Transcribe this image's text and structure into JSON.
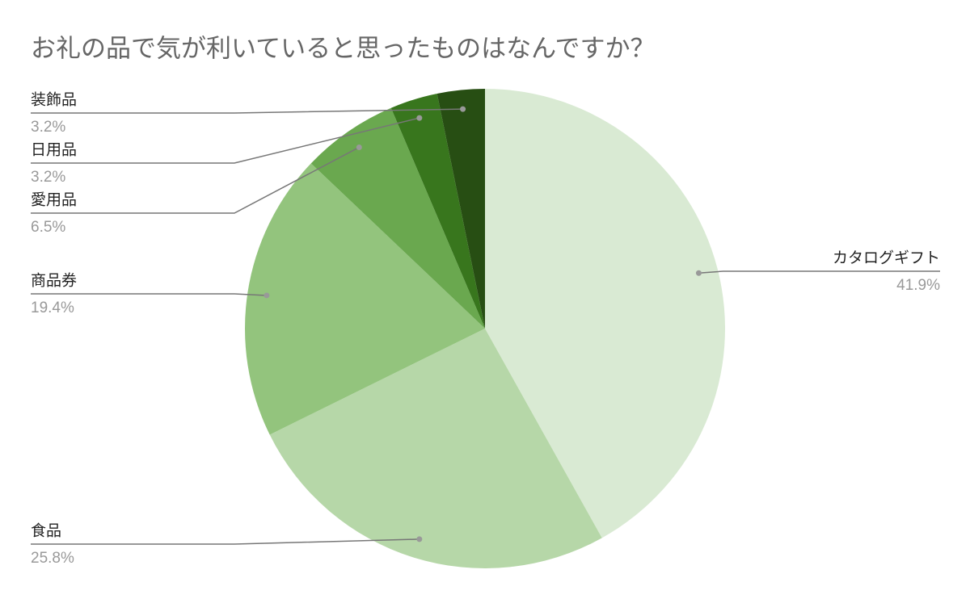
{
  "chart_data": {
    "type": "pie",
    "title": "お礼の品で気が利いていると思ったものはなんですか？",
    "categories": [
      "カタログギフト",
      "食品",
      "商品券",
      "愛用品",
      "日用品",
      "装飾品"
    ],
    "values": [
      41.9,
      25.8,
      19.4,
      6.5,
      3.2,
      3.2
    ],
    "value_labels": [
      "41.9%",
      "25.8%",
      "19.4%",
      "6.5%",
      "3.2%",
      "3.2%"
    ],
    "colors": [
      "#d9ead3",
      "#b6d7a8",
      "#93c47d",
      "#6aa84f",
      "#38761d",
      "#274e13"
    ]
  }
}
